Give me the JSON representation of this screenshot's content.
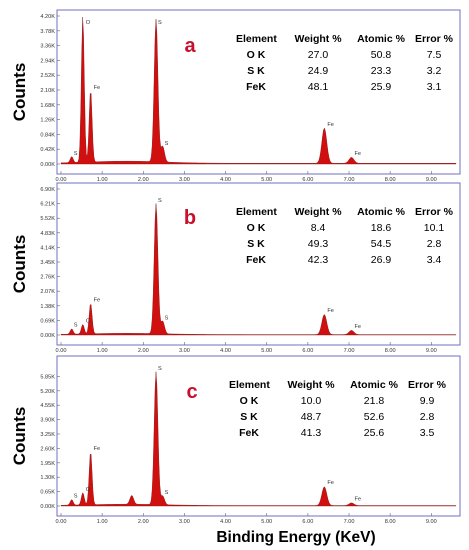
{
  "xlabel": "Binding Energy (KeV)",
  "x_ticks": [
    "0.00",
    "1.00",
    "2.00",
    "3.00",
    "4.00",
    "5.00",
    "6.00",
    "7.00",
    "8.00",
    "9.00"
  ],
  "colors": {
    "spectrum": "#d20f0f",
    "spectrum_edge": "#7a0f0f",
    "frame": "#6f6fbf",
    "panel_letter": "#c8102e"
  },
  "table_headers": [
    "Element",
    "Weight %",
    "Atomic %",
    "Error %"
  ],
  "chart_data": [
    {
      "type": "area",
      "panel": "a",
      "ylabel": "Counts",
      "xlim": [
        0,
        9.6
      ],
      "ylim": [
        0,
        4.2
      ],
      "y_unit": "K",
      "y_ticks": [
        "0.00K",
        "0.42K",
        "0.84K",
        "1.26K",
        "1.68K",
        "2.10K",
        "2.52K",
        "2.94K",
        "3.36K",
        "3.78K",
        "4.20K"
      ],
      "peaks": [
        {
          "x": 0.26,
          "h": 0.17,
          "label": "S"
        },
        {
          "x": 0.53,
          "h": 4.15,
          "label": "O"
        },
        {
          "x": 0.72,
          "h": 2.05,
          "label": "Fe"
        },
        {
          "x": 2.31,
          "h": 4.05,
          "label": "S"
        },
        {
          "x": 2.47,
          "h": 0.45,
          "label": "S"
        },
        {
          "x": 6.4,
          "h": 1.0,
          "label": "Fe"
        },
        {
          "x": 7.06,
          "h": 0.17,
          "label": "Fe"
        }
      ],
      "table": [
        [
          "O K",
          "27.0",
          "50.8",
          "7.5"
        ],
        [
          "S K",
          "24.9",
          "23.3",
          "3.2"
        ],
        [
          "FeK",
          "48.1",
          "25.9",
          "3.1"
        ]
      ]
    },
    {
      "type": "area",
      "panel": "b",
      "ylabel": "Counts",
      "xlim": [
        0,
        9.6
      ],
      "ylim": [
        0,
        6.9
      ],
      "y_unit": "K",
      "y_ticks": [
        "0.00K",
        "0.69K",
        "1.38K",
        "2.07K",
        "2.76K",
        "3.45K",
        "4.14K",
        "4.83K",
        "5.52K",
        "6.21K",
        "6.90K"
      ],
      "peaks": [
        {
          "x": 0.26,
          "h": 0.25,
          "label": "S"
        },
        {
          "x": 0.53,
          "h": 0.45,
          "label": "O"
        },
        {
          "x": 0.72,
          "h": 1.45,
          "label": "Fe"
        },
        {
          "x": 2.31,
          "h": 6.15,
          "label": "S"
        },
        {
          "x": 2.47,
          "h": 0.6,
          "label": "S"
        },
        {
          "x": 6.4,
          "h": 0.95,
          "label": "Fe"
        },
        {
          "x": 7.06,
          "h": 0.2,
          "label": "Fe"
        }
      ],
      "table": [
        [
          "O K",
          "8.4",
          "18.6",
          "10.1"
        ],
        [
          "S K",
          "49.3",
          "54.5",
          "2.8"
        ],
        [
          "FeK",
          "42.3",
          "26.9",
          "3.4"
        ]
      ]
    },
    {
      "type": "area",
      "panel": "c",
      "ylabel": "Counts",
      "xlim": [
        0,
        9.6
      ],
      "ylim": [
        0,
        6.5
      ],
      "y_unit": "K",
      "y_ticks": [
        "0.00K",
        "0.65K",
        "1.30K",
        "1.95K",
        "2.60K",
        "3.25K",
        "3.90K",
        "4.55K",
        "5.20K",
        "5.85K"
      ],
      "peaks": [
        {
          "x": 0.26,
          "h": 0.25,
          "label": "S"
        },
        {
          "x": 0.53,
          "h": 0.55,
          "label": "O"
        },
        {
          "x": 0.72,
          "h": 2.4,
          "label": "Fe"
        },
        {
          "x": 1.72,
          "h": 0.4,
          "label": ""
        },
        {
          "x": 2.31,
          "h": 6.0,
          "label": "S"
        },
        {
          "x": 2.47,
          "h": 0.4,
          "label": "S"
        },
        {
          "x": 6.4,
          "h": 0.85,
          "label": "Fe"
        },
        {
          "x": 7.06,
          "h": 0.12,
          "label": "Fe"
        }
      ],
      "table": [
        [
          "O K",
          "10.0",
          "21.8",
          "9.9"
        ],
        [
          "S K",
          "48.7",
          "52.6",
          "2.8"
        ],
        [
          "FeK",
          "41.3",
          "25.6",
          "3.5"
        ]
      ]
    }
  ]
}
